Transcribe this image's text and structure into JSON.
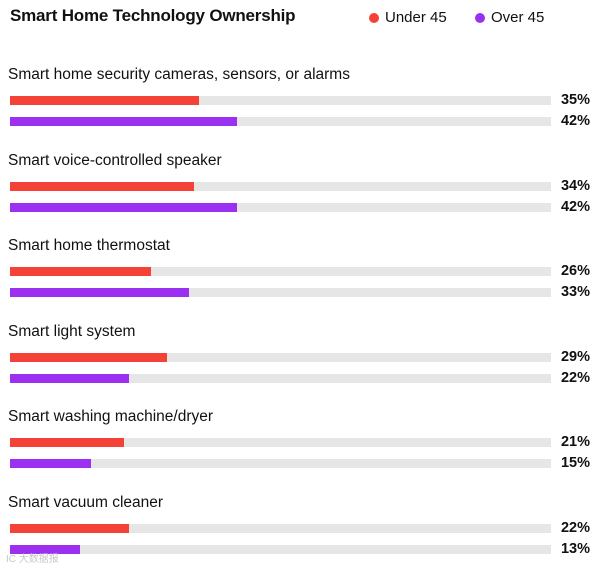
{
  "chart_data": {
    "type": "bar",
    "orientation": "horizontal",
    "title": "Smart Home Technology Ownership",
    "legend_placement": "top-right",
    "categories": [
      "Smart home security cameras, sensors, or alarms",
      "Smart voice-controlled speaker",
      "Smart home thermostat",
      "Smart light system",
      "Smart washing machine/dryer",
      "Smart vacuum cleaner"
    ],
    "series": [
      {
        "name": "Under 45",
        "color": "#f44336",
        "values": [
          35,
          34,
          26,
          29,
          21,
          22
        ]
      },
      {
        "name": "Over 45",
        "color": "#9b30f0",
        "values": [
          42,
          42,
          33,
          22,
          15,
          13
        ]
      }
    ],
    "value_suffix": "%",
    "xlim": [
      0,
      100
    ],
    "track_color": "#e6e6e6"
  },
  "watermark": "IC 大数据报"
}
